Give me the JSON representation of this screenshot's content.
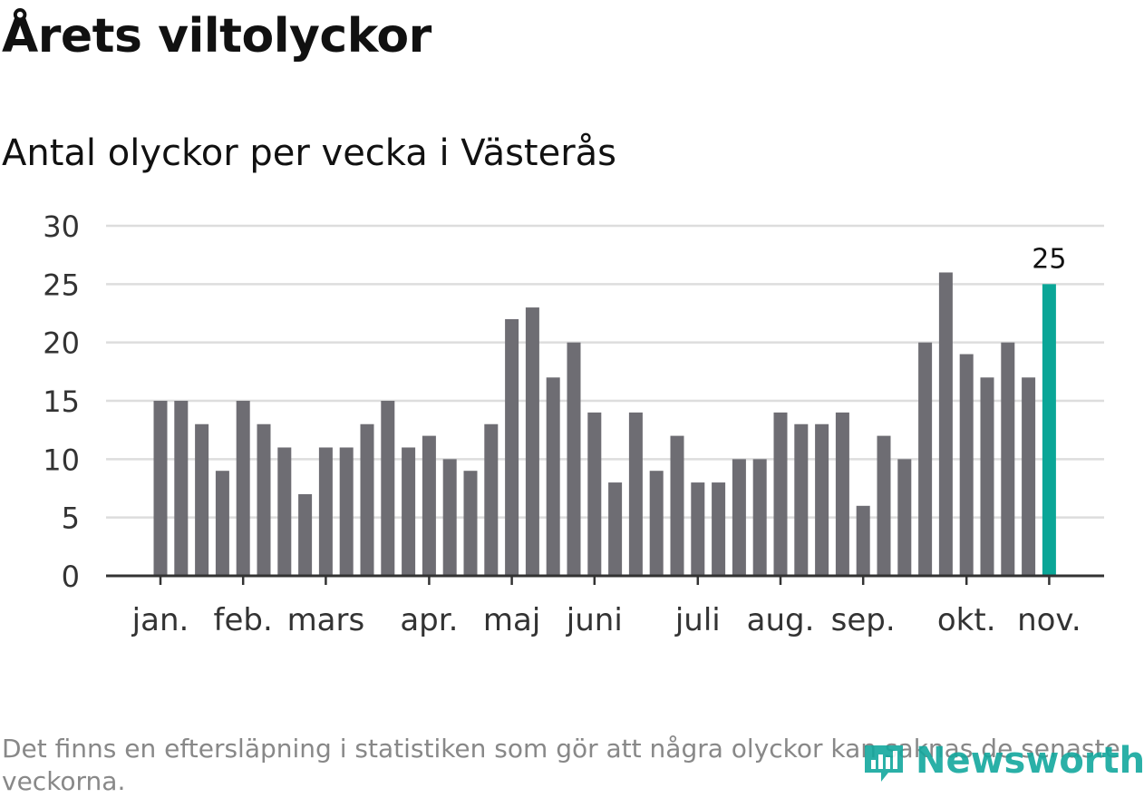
{
  "header": {
    "title": "Årets viltolyckor",
    "subtitle": "Antal olyckor per vecka i Västerås"
  },
  "footer": {
    "note": "Det finns en eftersläpning i statistiken som gör att några olyckor kan saknas de senaste veckorna.",
    "brand": "Newsworthy"
  },
  "colors": {
    "bar": "#6e6d73",
    "highlight": "#0aa697",
    "grid": "#dddddd",
    "axis": "#333333",
    "text": "#333333"
  },
  "chart_data": {
    "type": "bar",
    "title": "Årets viltolyckor",
    "subtitle": "Antal olyckor per vecka i Västerås",
    "xlabel": "",
    "ylabel": "",
    "ylim": [
      0,
      30
    ],
    "yticks": [
      0,
      5,
      10,
      15,
      20,
      25,
      30
    ],
    "grid": true,
    "values": [
      15,
      15,
      13,
      9,
      15,
      13,
      11,
      7,
      11,
      11,
      13,
      15,
      11,
      12,
      10,
      9,
      13,
      22,
      23,
      17,
      20,
      14,
      8,
      14,
      9,
      12,
      8,
      8,
      10,
      10,
      14,
      13,
      13,
      14,
      6,
      12,
      10,
      20,
      26,
      19,
      17,
      20,
      17,
      25
    ],
    "highlight_index": 43,
    "highlight_label": "25",
    "month_labels": [
      {
        "label": "jan.",
        "bar_index": 0
      },
      {
        "label": "feb.",
        "bar_index": 4
      },
      {
        "label": "mars",
        "bar_index": 8
      },
      {
        "label": "apr.",
        "bar_index": 13
      },
      {
        "label": "maj",
        "bar_index": 17
      },
      {
        "label": "juni",
        "bar_index": 21
      },
      {
        "label": "juli",
        "bar_index": 26
      },
      {
        "label": "aug.",
        "bar_index": 30
      },
      {
        "label": "sep.",
        "bar_index": 34
      },
      {
        "label": "okt.",
        "bar_index": 39
      },
      {
        "label": "nov.",
        "bar_index": 43
      }
    ]
  }
}
